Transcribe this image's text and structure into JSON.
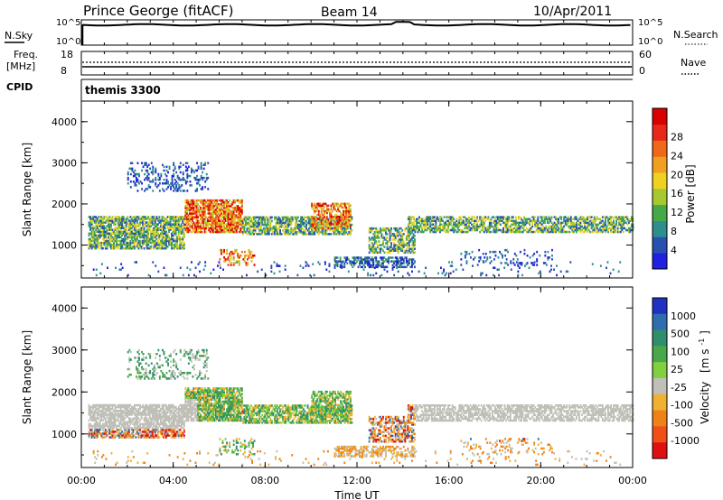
{
  "header": {
    "station": "Prince George (fitACF)",
    "beam": "Beam 14",
    "date": "10/Apr/2011"
  },
  "top_panels": {
    "nsky": {
      "label": "N.Sky",
      "ticks": [
        "10^5",
        "10^0"
      ],
      "right_label": "N.Search",
      "right_ticks": [
        "10^5",
        "10^0"
      ]
    },
    "freq": {
      "label_line1": "Freq.",
      "label_line2": "[MHz]",
      "ticks": [
        "18",
        "8"
      ],
      "right_label": "Nave",
      "right_ticks": [
        "60",
        "0"
      ]
    },
    "cpid": {
      "label": "CPID",
      "value": "themis 3300"
    }
  },
  "chart_data": [
    {
      "type": "heatmap",
      "parameter": "Power",
      "ylabel": "Slant Range [km]",
      "ylim": [
        200,
        4500
      ],
      "yticks": [
        "1000",
        "2000",
        "3000",
        "4000"
      ],
      "xlabel": "Time UT",
      "xlim": [
        0,
        24
      ],
      "xticks": [
        "00:00",
        "04:00",
        "08:00",
        "12:00",
        "16:00",
        "20:00",
        "00:00"
      ],
      "colorbar": {
        "label": "Power [dB]",
        "ticks": [
          "4",
          "8",
          "12",
          "16",
          "20",
          "24",
          "28"
        ],
        "colors": [
          "#2020e0",
          "#2850b0",
          "#2e8e8e",
          "#46a846",
          "#a8c830",
          "#f0d020",
          "#f0a020",
          "#f06818",
          "#e82818",
          "#d80000"
        ]
      }
    },
    {
      "type": "heatmap",
      "parameter": "Velocity",
      "ylabel": "Slant Range [km]",
      "ylim": [
        200,
        4500
      ],
      "yticks": [
        "1000",
        "2000",
        "3000",
        "4000"
      ],
      "xlabel": "Time UT",
      "xlim": [
        0,
        24
      ],
      "xticks": [
        "00:00",
        "04:00",
        "08:00",
        "12:00",
        "16:00",
        "20:00",
        "00:00"
      ],
      "colorbar": {
        "label_main": "Velocity",
        "label_unit": "[m s",
        "label_exp": "-1",
        "label_close": "]",
        "ticks": [
          "1000",
          "500",
          "100",
          "25",
          "-25",
          "-100",
          "-500",
          "-1000"
        ],
        "colors": [
          "#2030c0",
          "#2e6eb0",
          "#2e8e6e",
          "#4aa84a",
          "#80d040",
          "#c0c0b8",
          "#f0b030",
          "#f08018",
          "#f05018",
          "#e01010"
        ]
      }
    }
  ],
  "palette": {
    "ground_scatter": "#c0c0b8",
    "axis": "#000000"
  }
}
